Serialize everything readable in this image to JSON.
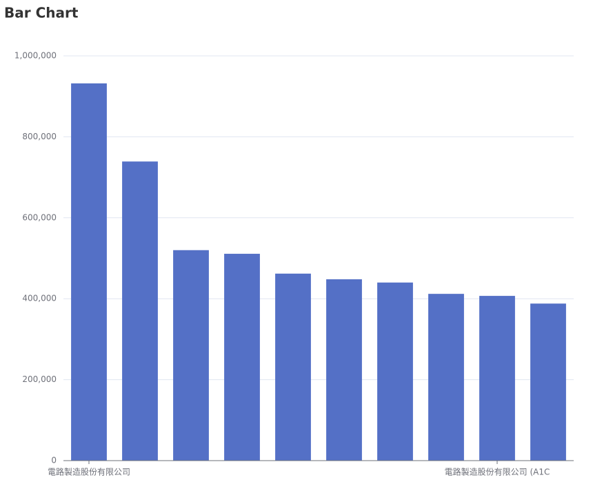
{
  "chart_data": {
    "type": "bar",
    "title": "Bar Chart",
    "categories": [
      "電路製造股份有限公司",
      null,
      null,
      null,
      null,
      null,
      null,
      null,
      "電路製造股份有限公司 (A1C",
      null
    ],
    "values": [
      932000,
      739000,
      520000,
      511000,
      462000,
      448000,
      440000,
      412000,
      407000,
      388000
    ],
    "color": "#5470c6",
    "ylim": [
      0,
      1000000
    ],
    "yticks": [
      0,
      {
        "value": 200000,
        "label": "200,000"
      },
      {
        "value": 400000,
        "label": "400,000"
      },
      {
        "value": 600000,
        "label": "600,000"
      },
      {
        "value": 800000,
        "label": "800,000"
      },
      {
        "value": 1000000,
        "label": "1,000,000"
      }
    ],
    "grid": true
  }
}
